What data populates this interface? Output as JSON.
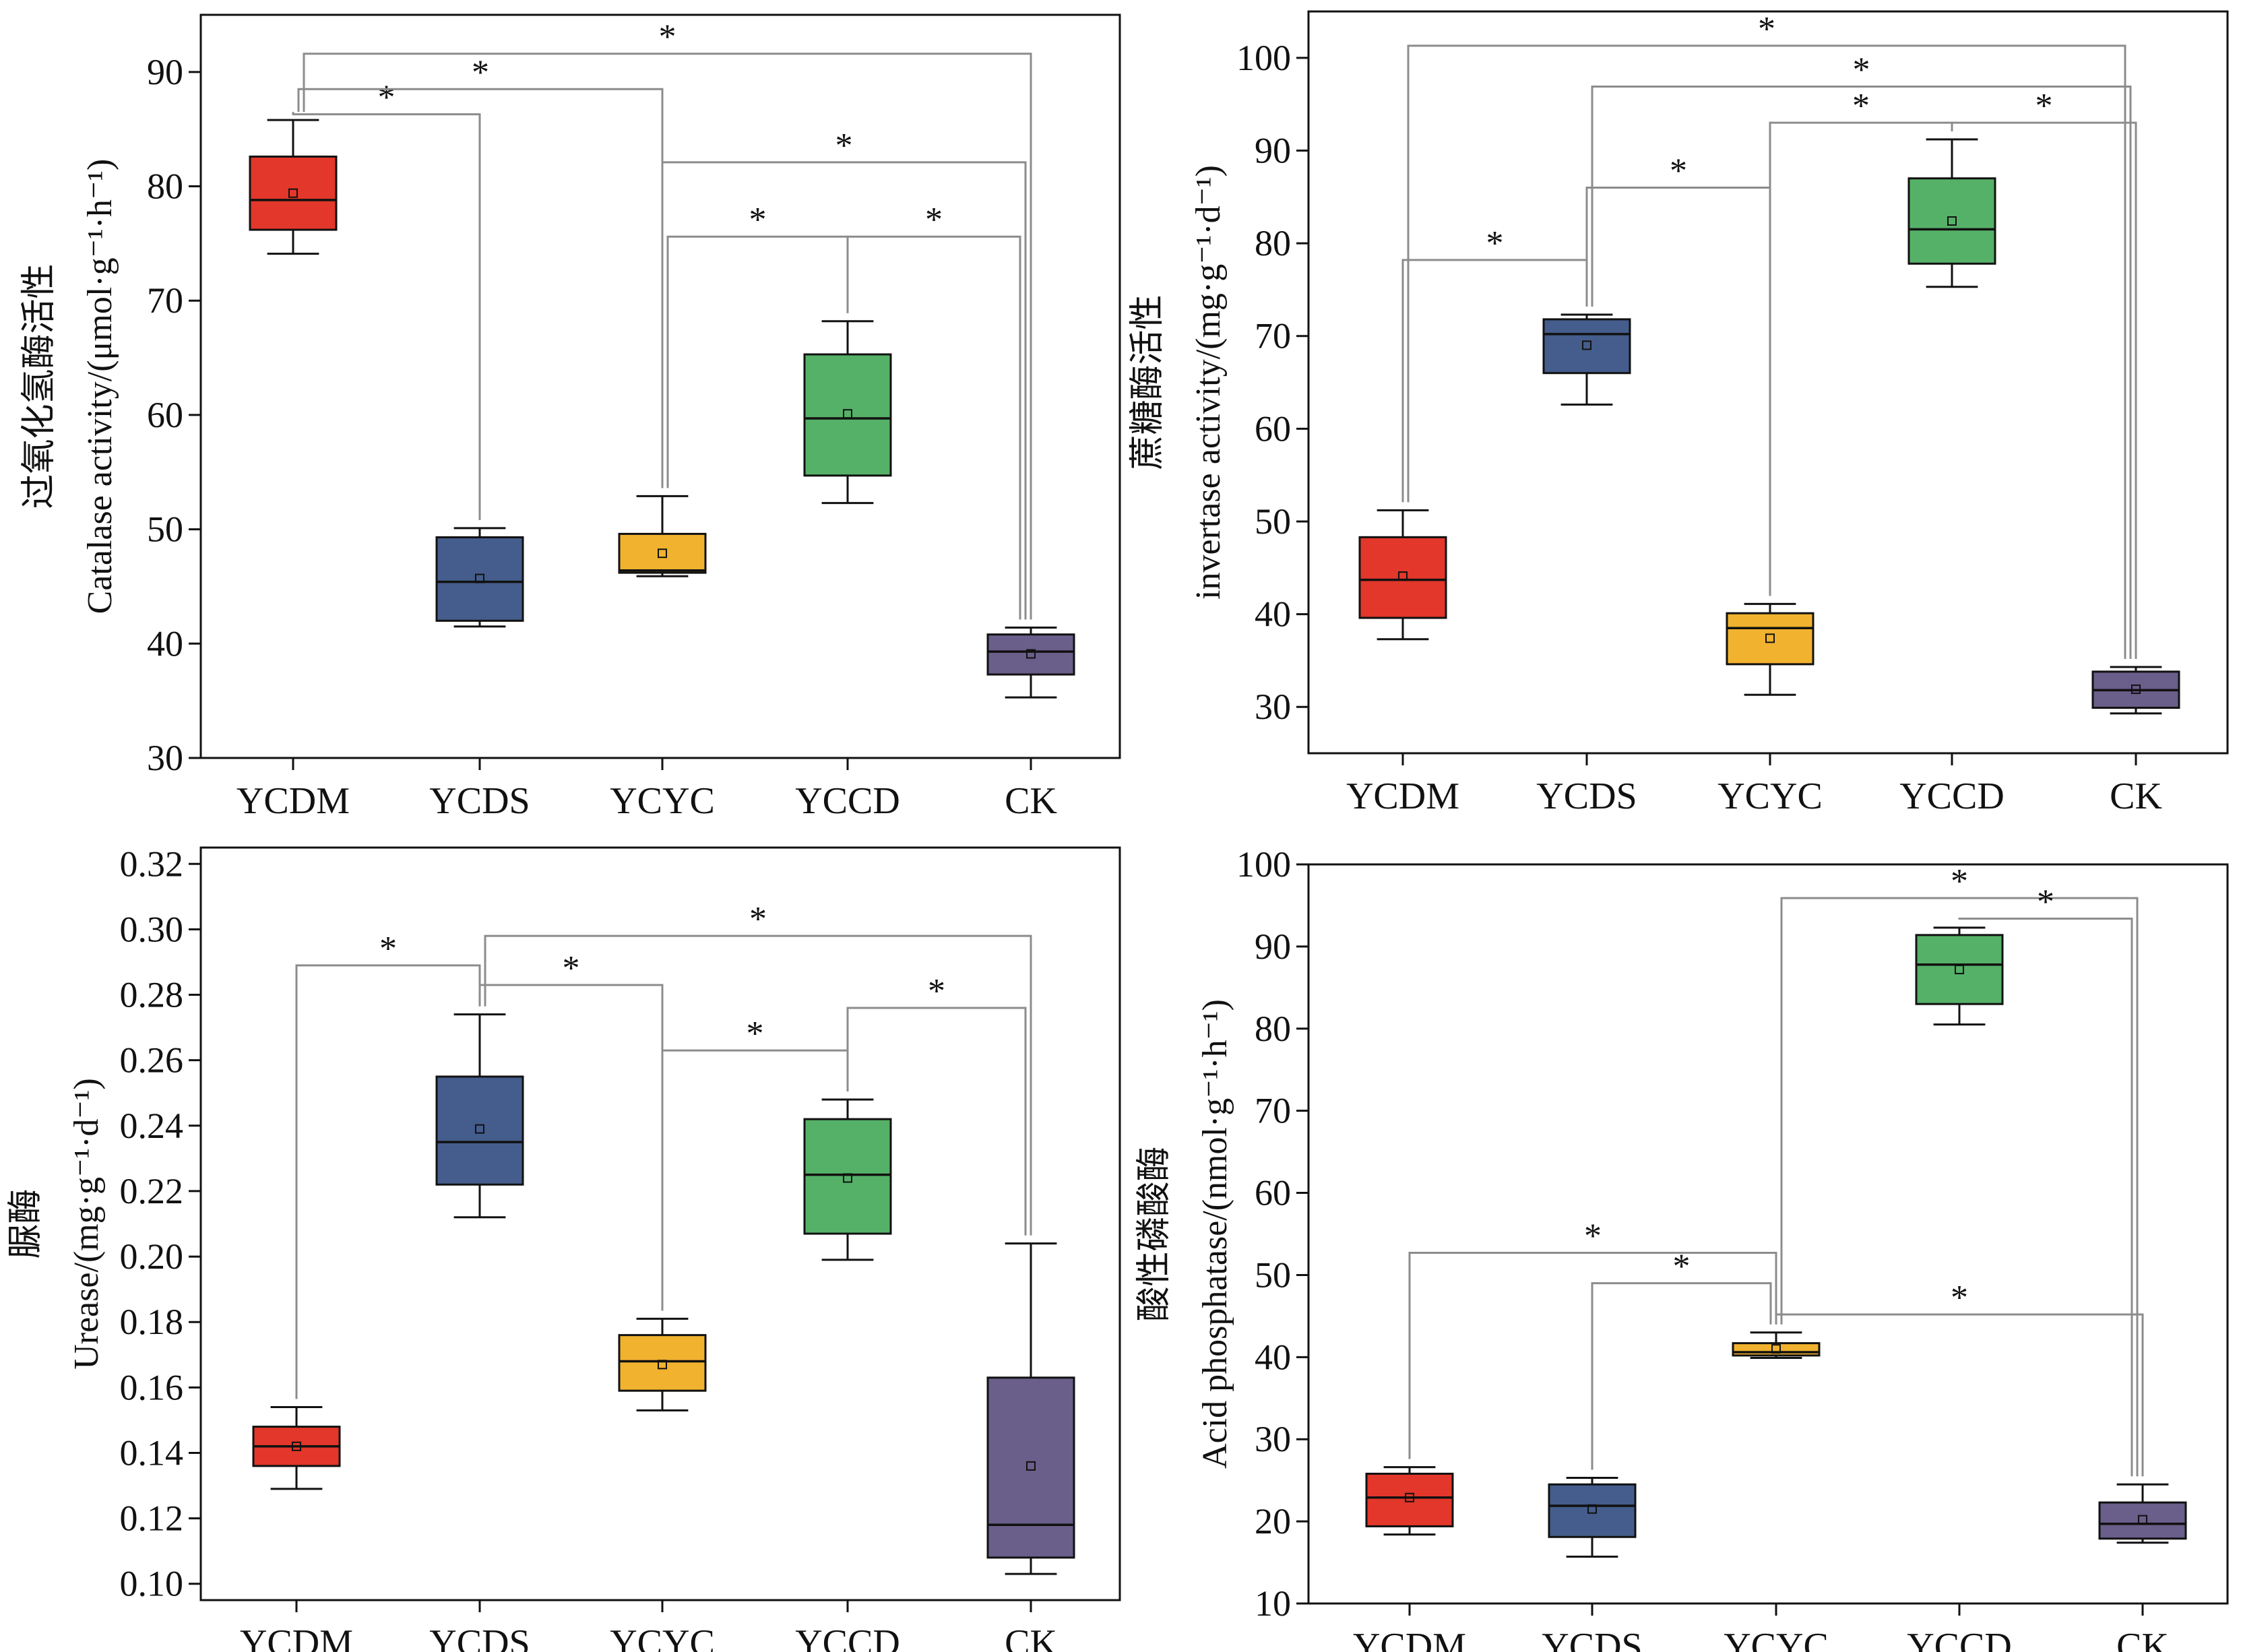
{
  "chart_data": [
    {
      "type": "box",
      "ylabel": "过氧化氢酶活性 Catalase activity/(μmol·g⁻¹·h⁻¹)",
      "ylabel_cn": "过氧化氢酶活性",
      "ylabel_en": "Catalase activity/(μmol·g⁻¹·h⁻¹)",
      "ylim": [
        30,
        95
      ],
      "yticks": [
        30,
        40,
        50,
        60,
        70,
        80,
        90
      ],
      "ytick_labels": [
        "30",
        "40",
        "50",
        "60",
        "70",
        "80",
        "90"
      ],
      "categories": [
        "YCDM",
        "YCDS",
        "YCYC",
        "YCCD",
        "CK"
      ],
      "boxes": [
        {
          "min": 74.1,
          "q1": 76.2,
          "median": 78.8,
          "q3": 82.6,
          "max": 85.8,
          "mean": 79.4
        },
        {
          "min": 41.5,
          "q1": 42.0,
          "median": 45.4,
          "q3": 49.3,
          "max": 50.1,
          "mean": 45.7
        },
        {
          "min": 45.9,
          "q1": 46.2,
          "median": 46.4,
          "q3": 49.6,
          "max": 52.9,
          "mean": 47.9
        },
        {
          "min": 52.3,
          "q1": 54.7,
          "median": 59.7,
          "q3": 65.3,
          "max": 68.2,
          "mean": 60.1
        },
        {
          "min": 35.3,
          "q1": 37.3,
          "median": 39.3,
          "q3": 40.8,
          "max": 41.4,
          "mean": 39.1
        }
      ],
      "significance": [
        {
          "from": 0,
          "to": 1,
          "y": 86.3,
          "label": "*"
        },
        {
          "from": 0,
          "to": 2,
          "y": 88.5,
          "label": "*"
        },
        {
          "from": 0,
          "to": 4,
          "y": 91.6,
          "label": "*"
        },
        {
          "from": 2,
          "to": 4,
          "y": 82.1,
          "label": "*"
        },
        {
          "from": 2,
          "to": 3,
          "y": 75.6,
          "label": "*"
        },
        {
          "from": 3,
          "to": 4,
          "y": 75.6,
          "label": "*"
        }
      ]
    },
    {
      "type": "box",
      "ylabel": "蔗糖酶活性 invertase activity/(mg·g⁻¹·d⁻¹)",
      "ylabel_cn": "蔗糖酶活性",
      "ylabel_en": "invertase activity/(mg·g⁻¹·d⁻¹)",
      "ylim": [
        25,
        105
      ],
      "yticks": [
        30,
        40,
        50,
        60,
        70,
        80,
        90,
        100
      ],
      "ytick_labels": [
        "30",
        "40",
        "50",
        "60",
        "70",
        "80",
        "90",
        "100"
      ],
      "categories": [
        "YCDM",
        "YCDS",
        "YCYC",
        "YCCD",
        "CK"
      ],
      "boxes": [
        {
          "min": 37.3,
          "q1": 39.6,
          "median": 43.7,
          "q3": 48.3,
          "max": 51.2,
          "mean": 44.1
        },
        {
          "min": 62.6,
          "q1": 66.0,
          "median": 70.2,
          "q3": 71.8,
          "max": 72.3,
          "mean": 69.0
        },
        {
          "min": 31.3,
          "q1": 34.6,
          "median": 38.5,
          "q3": 40.1,
          "max": 41.1,
          "mean": 37.4
        },
        {
          "min": 75.3,
          "q1": 77.8,
          "median": 81.5,
          "q3": 87.0,
          "max": 91.2,
          "mean": 82.4
        },
        {
          "min": 29.3,
          "q1": 29.9,
          "median": 31.8,
          "q3": 33.8,
          "max": 34.3,
          "mean": 31.9
        }
      ],
      "significance": [
        {
          "from": 0,
          "to": 1,
          "y": 78.2,
          "label": "*"
        },
        {
          "from": 1,
          "to": 2,
          "y": 86.0,
          "label": "*"
        },
        {
          "from": 2,
          "to": 3,
          "y": 93.0,
          "label": "*"
        },
        {
          "from": 3,
          "to": 4,
          "y": 93.0,
          "label": "*"
        },
        {
          "from": 1,
          "to": 4,
          "y": 96.9,
          "label": "*"
        },
        {
          "from": 0,
          "to": 4,
          "y": 101.3,
          "label": "*"
        }
      ]
    },
    {
      "type": "box",
      "ylabel": "脲酶 Urease/(mg·g⁻¹·d⁻¹)",
      "ylabel_cn": "脲酶",
      "ylabel_en": "Urease/(mg·g⁻¹·d⁻¹)",
      "ylim": [
        0.095,
        0.325
      ],
      "yticks": [
        0.1,
        0.12,
        0.14,
        0.16,
        0.18,
        0.2,
        0.22,
        0.24,
        0.26,
        0.28,
        0.3,
        0.32
      ],
      "ytick_labels": [
        "0.10",
        "0.12",
        "0.14",
        "0.16",
        "0.18",
        "0.20",
        "0.22",
        "0.24",
        "0.26",
        "0.28",
        "0.30",
        "0.32"
      ],
      "categories": [
        "YCDM",
        "YCDS",
        "YCYC",
        "YCCD",
        "CK"
      ],
      "boxes": [
        {
          "min": 0.129,
          "q1": 0.136,
          "median": 0.142,
          "q3": 0.148,
          "max": 0.154,
          "mean": 0.142
        },
        {
          "min": 0.212,
          "q1": 0.222,
          "median": 0.235,
          "q3": 0.255,
          "max": 0.274,
          "mean": 0.239
        },
        {
          "min": 0.153,
          "q1": 0.159,
          "median": 0.168,
          "q3": 0.176,
          "max": 0.181,
          "mean": 0.167
        },
        {
          "min": 0.199,
          "q1": 0.207,
          "median": 0.225,
          "q3": 0.242,
          "max": 0.248,
          "mean": 0.224
        },
        {
          "min": 0.103,
          "q1": 0.108,
          "median": 0.118,
          "q3": 0.163,
          "max": 0.204,
          "mean": 0.136
        }
      ],
      "significance": [
        {
          "from": 0,
          "to": 1,
          "y": 0.289,
          "label": "*"
        },
        {
          "from": 1,
          "to": 2,
          "y": 0.283,
          "label": "*"
        },
        {
          "from": 1,
          "to": 4,
          "y": 0.298,
          "label": "*"
        },
        {
          "from": 2,
          "to": 3,
          "y": 0.263,
          "label": "*"
        },
        {
          "from": 3,
          "to": 4,
          "y": 0.276,
          "label": "*"
        }
      ]
    },
    {
      "type": "box",
      "ylabel": "酸性磷酸酶 Acid phosphatase/(nmol·g⁻¹·h⁻¹)",
      "ylabel_cn": "酸性磷酸酶",
      "ylabel_en": "Acid phosphatase/(nmol·g⁻¹·h⁻¹)",
      "ylim": [
        10,
        100
      ],
      "yticks": [
        10,
        20,
        30,
        40,
        50,
        60,
        70,
        80,
        90,
        100
      ],
      "ytick_labels": [
        "10",
        "20",
        "30",
        "40",
        "50",
        "60",
        "70",
        "80",
        "90",
        "100"
      ],
      "categories": [
        "YCDM",
        "YCDS",
        "YCYC",
        "YCCD",
        "CK"
      ],
      "boxes": [
        {
          "min": 18.4,
          "q1": 19.4,
          "median": 22.9,
          "q3": 25.8,
          "max": 26.6,
          "mean": 22.9
        },
        {
          "min": 15.7,
          "q1": 18.1,
          "median": 21.9,
          "q3": 24.5,
          "max": 25.3,
          "mean": 21.5
        },
        {
          "min": 39.9,
          "q1": 40.2,
          "median": 40.6,
          "q3": 41.7,
          "max": 43.0,
          "mean": 41.0
        },
        {
          "min": 80.5,
          "q1": 83.0,
          "median": 87.8,
          "q3": 91.4,
          "max": 92.3,
          "mean": 87.2
        },
        {
          "min": 17.4,
          "q1": 17.9,
          "median": 19.7,
          "q3": 22.3,
          "max": 24.5,
          "mean": 20.2
        }
      ],
      "significance": [
        {
          "from": 0,
          "to": 2,
          "y": 52.7,
          "label": "*"
        },
        {
          "from": 1,
          "to": 2,
          "y": 49.0,
          "label": "*"
        },
        {
          "from": 2,
          "to": 4,
          "y": 45.2,
          "label": "*"
        },
        {
          "from": 2,
          "to": 4,
          "y": 95.9,
          "label": "*"
        },
        {
          "from": 3,
          "to": 4,
          "y": 93.4,
          "label": "*"
        }
      ]
    }
  ],
  "colors": {
    "YCDM": "#e2372a",
    "YCDS": "#455d8c",
    "YCYC": "#f1b22f",
    "YCCD": "#55b168",
    "CK": "#6a5e8a",
    "bracket": "#8c8c8c",
    "axis": "#111111"
  }
}
